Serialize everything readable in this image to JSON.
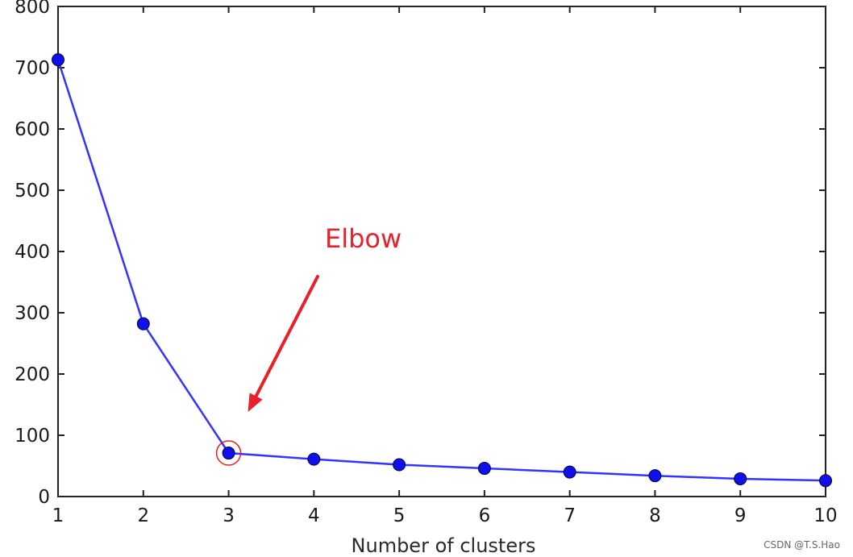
{
  "chart_data": {
    "type": "line",
    "title": "",
    "xlabel": "Number of clusters",
    "ylabel": "",
    "x": [
      1,
      2,
      3,
      4,
      5,
      6,
      7,
      8,
      9,
      10
    ],
    "series": [
      {
        "values": [
          713,
          282,
          71,
          61,
          52,
          46,
          40,
          34,
          29,
          26
        ]
      }
    ],
    "xlim": [
      1,
      10
    ],
    "ylim": [
      0,
      800
    ],
    "xticks": [
      "1",
      "2",
      "3",
      "4",
      "5",
      "6",
      "7",
      "8",
      "9",
      "10"
    ],
    "yticks": [
      "0",
      "100",
      "200",
      "300",
      "400",
      "500",
      "600",
      "700",
      "800"
    ],
    "grid": false,
    "legend": "none",
    "annotation": {
      "text": "Elbow",
      "target_x": 3,
      "target_y": 71
    }
  },
  "colors": {
    "line": "#3333ff",
    "marker": "#1010ee",
    "annotation": "#e8202a",
    "axis": "#222222"
  },
  "watermark": "CSDN @T.S.Hao"
}
